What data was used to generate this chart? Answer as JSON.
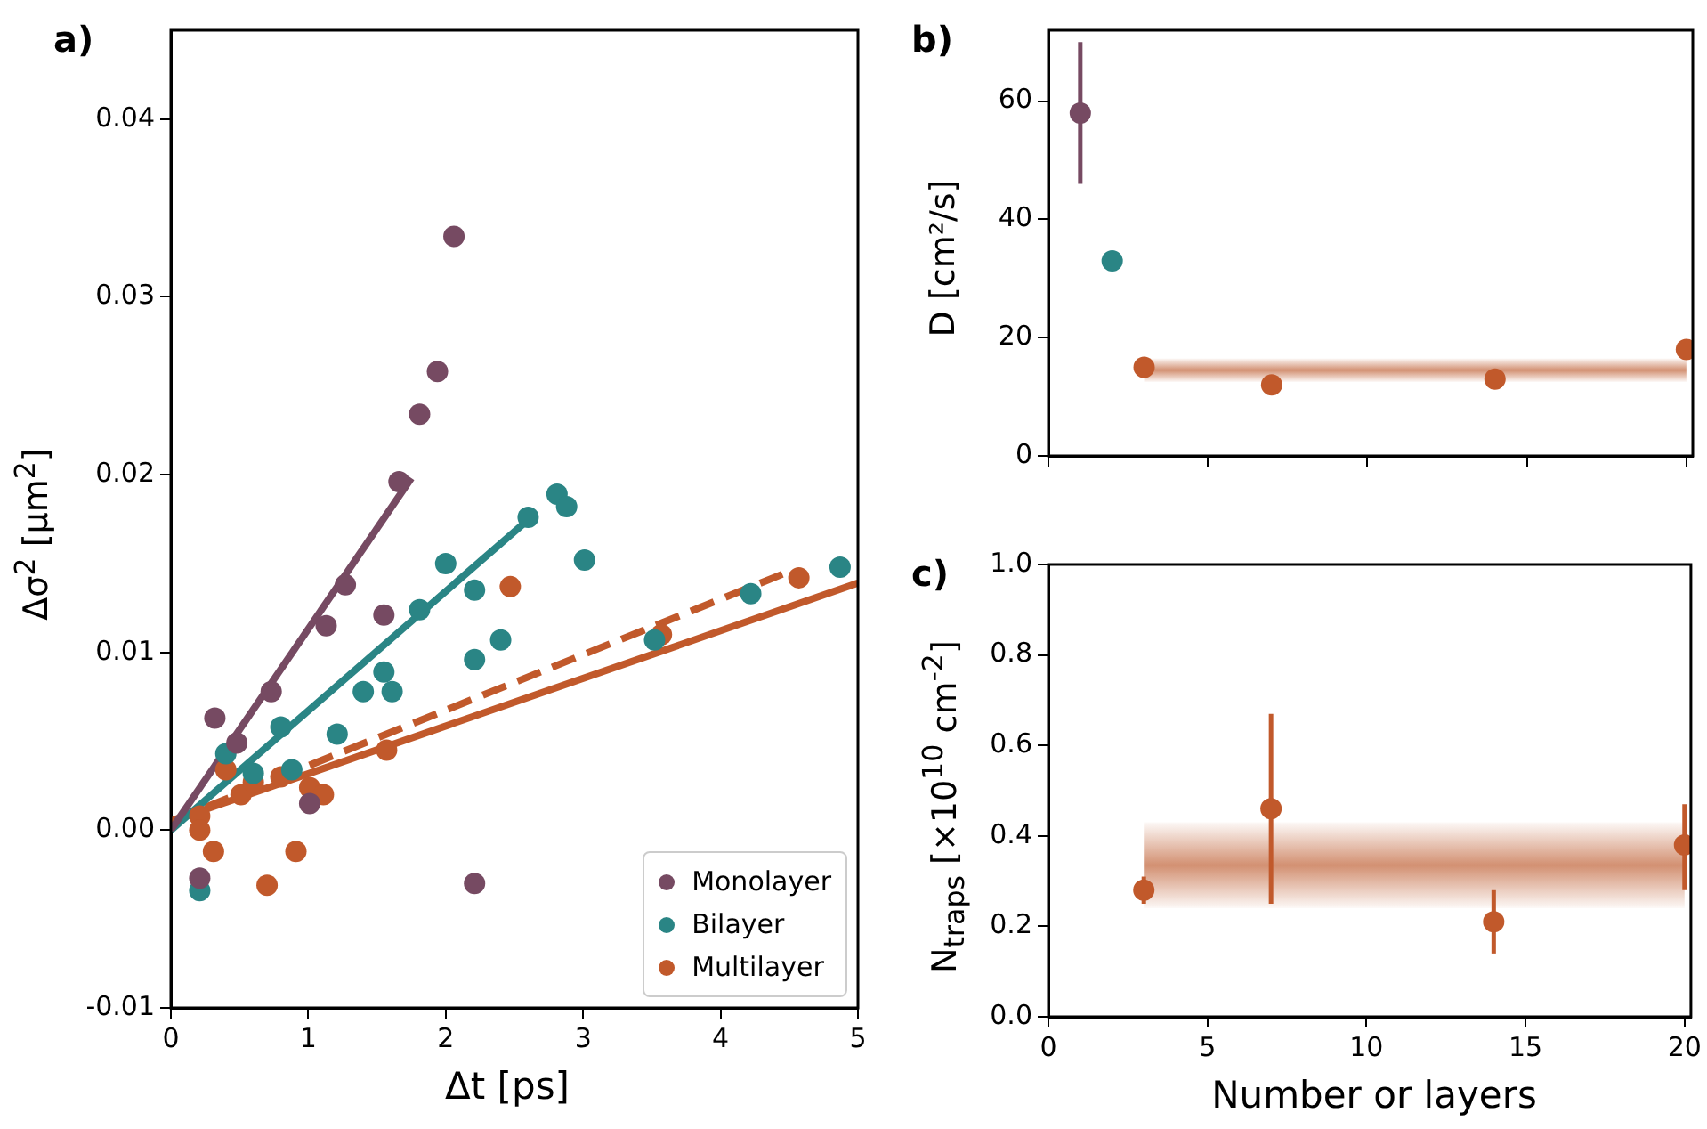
{
  "chart_data": [
    {
      "type": "scatter",
      "title": "a)",
      "xlabel": "Δt [ps]",
      "ylabel": "Δσ$^{2}$ [μm$^{2}$]",
      "xlim": [
        0,
        5
      ],
      "xticks": [
        0,
        1,
        2,
        3,
        4,
        5
      ],
      "ylim": [
        -0.01,
        0.045
      ],
      "yticks": [
        {
          "value": -0.01,
          "label": "-0.01"
        },
        {
          "value": 0,
          "label": "0.00"
        },
        {
          "value": 0.01,
          "label": "0.01"
        },
        {
          "value": 0.02,
          "label": "0.02"
        },
        {
          "value": 0.03,
          "label": "0.03"
        },
        {
          "value": 0.04,
          "label": "0.04"
        }
      ],
      "legend": "bottom right",
      "marker": "circle",
      "series": [
        {
          "name": "Monolayer",
          "color": "#764a62",
          "x": [
            0.21,
            0.32,
            0.48,
            0.73,
            1.01,
            1.13,
            1.27,
            1.55,
            1.66,
            1.81,
            1.94,
            2.06,
            2.21
          ],
          "values": [
            -0.0027,
            0.0063,
            0.0049,
            0.0078,
            0.0015,
            0.0115,
            0.0138,
            0.0121,
            0.0196,
            0.0234,
            0.0258,
            0.0334,
            -0.003
          ]
        },
        {
          "name": "Bilayer",
          "color": "#2a8585",
          "x": [
            0.21,
            0.4,
            0.6,
            0.8,
            0.88,
            1.21,
            1.4,
            1.55,
            1.61,
            1.81,
            2.0,
            2.21,
            2.21,
            2.4,
            2.6,
            2.81,
            2.88,
            3.01,
            3.52,
            4.22,
            4.87
          ],
          "values": [
            -0.0034,
            0.0043,
            0.0032,
            0.0058,
            0.0034,
            0.0054,
            0.0078,
            0.0089,
            0.0078,
            0.0124,
            0.015,
            0.0135,
            0.0096,
            0.0107,
            0.0176,
            0.0189,
            0.0182,
            0.0152,
            0.0107,
            0.0133,
            0.0148
          ]
        },
        {
          "name": "Multilayer",
          "color": "#c1592b",
          "x": [
            0.21,
            0.21,
            0.31,
            0.4,
            0.51,
            0.6,
            0.7,
            0.8,
            0.91,
            1.01,
            1.11,
            1.57,
            2.47,
            3.57,
            4.57
          ],
          "values": [
            0.0008,
            0.0,
            -0.0012,
            0.0034,
            0.002,
            0.0027,
            -0.0031,
            0.003,
            -0.0012,
            0.0024,
            0.002,
            0.0045,
            0.0137,
            0.011,
            0.0142
          ]
        },
        {
          "type": "line",
          "marker": "none",
          "color": "#764a62",
          "x": [
            0,
            1.75
          ],
          "values": [
            0,
            0.0198
          ]
        },
        {
          "type": "line",
          "marker": "none",
          "color": "#2a8585",
          "x": [
            0,
            2.65
          ],
          "values": [
            0,
            0.0178
          ]
        },
        {
          "type": "line",
          "marker": "none",
          "color": "#c1592b",
          "x": [
            0,
            5
          ],
          "values": [
            0.0005,
            0.0139
          ]
        },
        {
          "type": "line",
          "marker": "none",
          "color": "#c1592b",
          "line_style": "dashed",
          "x": [
            0,
            4.45
          ],
          "values": [
            0.0005,
            0.0144
          ]
        }
      ]
    },
    {
      "type": "scatter",
      "title": "b)",
      "ylabel": "D [cm²/s]",
      "xlim": [
        0,
        20.2
      ],
      "xticks": [
        0,
        5,
        10,
        15,
        20
      ],
      "ylim": [
        0,
        72
      ],
      "yticks": [
        0,
        20,
        40,
        60
      ],
      "tick_labels": "y",
      "marker": "circle",
      "bands": [
        {
          "axis": "y",
          "from": 12.5,
          "to": 16.5,
          "color": "#d08a6a"
        }
      ],
      "series": [
        {
          "color": "#764a62",
          "x": [
            1
          ],
          "values": [
            58
          ],
          "errors": [
            [
              46,
              70
            ]
          ]
        },
        {
          "color": "#2a8585",
          "x": [
            2
          ],
          "values": [
            33
          ],
          "errors": [
            [
              31.5,
              34.5
            ]
          ]
        },
        {
          "color": "#c1592b",
          "x": [
            3,
            7,
            14,
            20
          ],
          "values": [
            15,
            12,
            13,
            18
          ],
          "errors": [
            [
              13.5,
              16.5
            ],
            null,
            null,
            null
          ]
        }
      ]
    },
    {
      "type": "scatter",
      "title": "c)",
      "xlabel": "Number or layers",
      "ylabel": "N$_{traps}$ [×10$^{10}$ cm$^{-2}$]",
      "xlim": [
        0,
        20.2
      ],
      "xticks": [
        0,
        5,
        10,
        15,
        20
      ],
      "ylim": [
        0,
        1
      ],
      "yticks": [
        {
          "value": 0,
          "label": "0.0"
        },
        {
          "value": 0.2,
          "label": "0.2"
        },
        {
          "value": 0.4,
          "label": "0.4"
        },
        {
          "value": 0.6,
          "label": "0.6"
        },
        {
          "value": 0.8,
          "label": "0.8"
        },
        {
          "value": 1,
          "label": "1.0"
        }
      ],
      "marker": "circle",
      "bands": [
        {
          "axis": "y",
          "from": 0.24,
          "to": 0.43,
          "color": "#d08a6a"
        }
      ],
      "series": [
        {
          "color": "#c1592b",
          "x": [
            3,
            7,
            14,
            20
          ],
          "values": [
            0.28,
            0.46,
            0.21,
            0.38
          ],
          "errors": [
            [
              0.25,
              0.31
            ],
            [
              0.25,
              0.67
            ],
            [
              0.14,
              0.28
            ],
            [
              0.28,
              0.47
            ]
          ]
        }
      ]
    }
  ]
}
